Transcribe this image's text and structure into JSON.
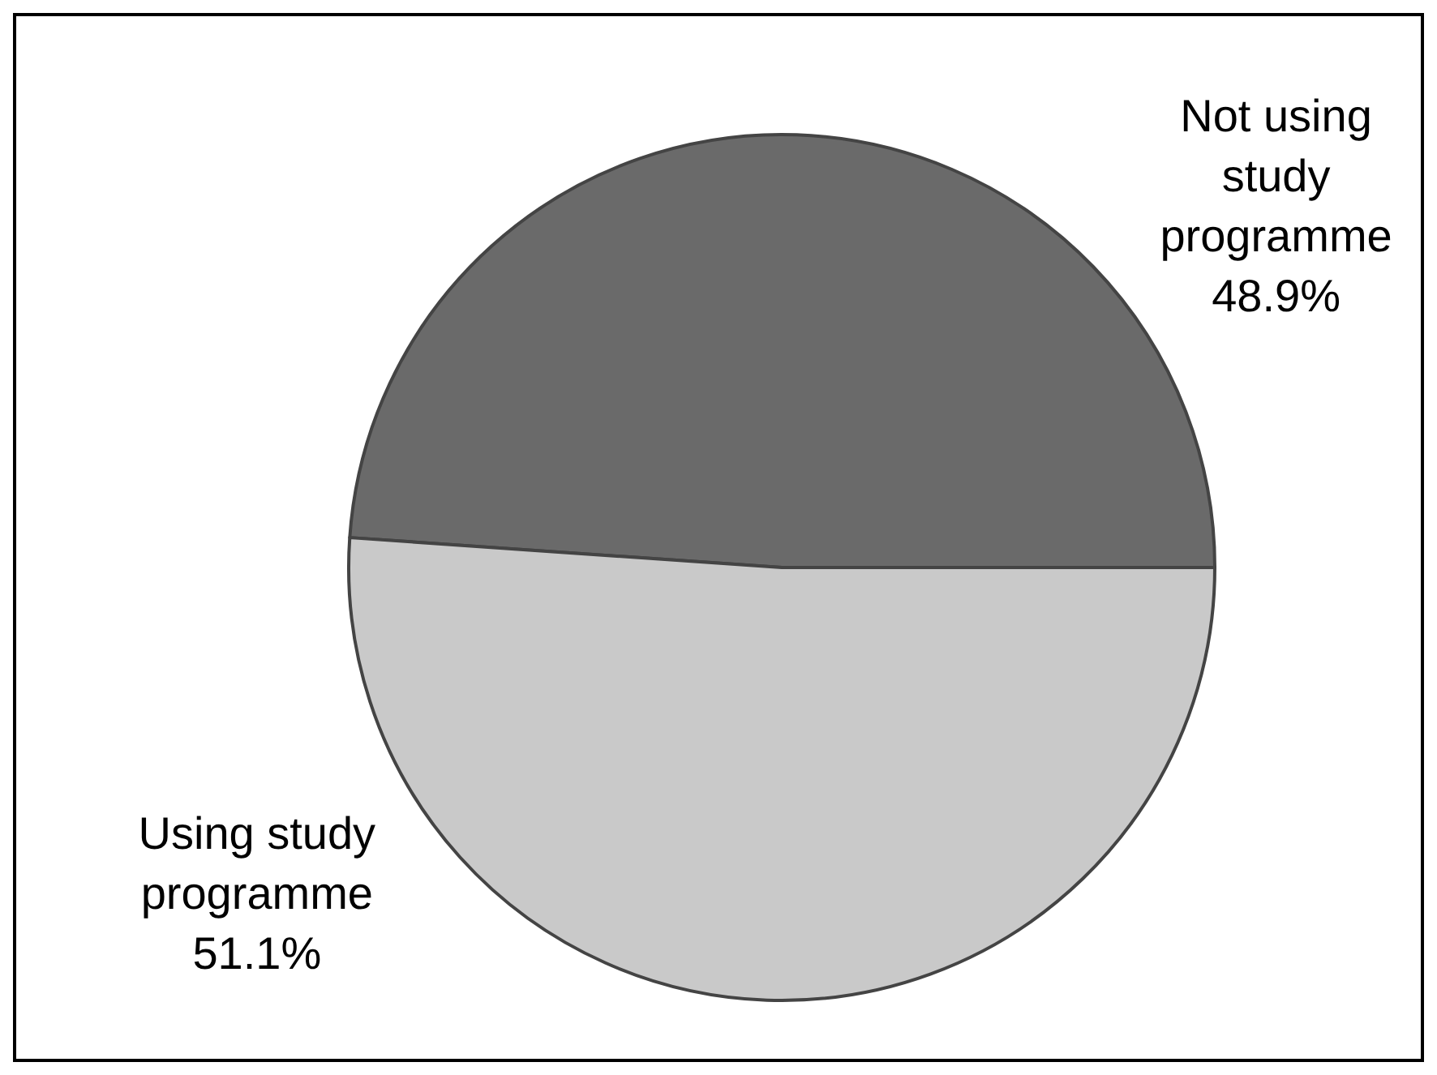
{
  "chart_data": {
    "type": "pie",
    "categories": [
      "Not using study programme",
      "Using study programme"
    ],
    "values": [
      48.9,
      51.1
    ],
    "value_labels": [
      "48.9%",
      "51.1%"
    ],
    "colors": [
      "#6a6a6a",
      "#c9c9c9"
    ]
  }
}
